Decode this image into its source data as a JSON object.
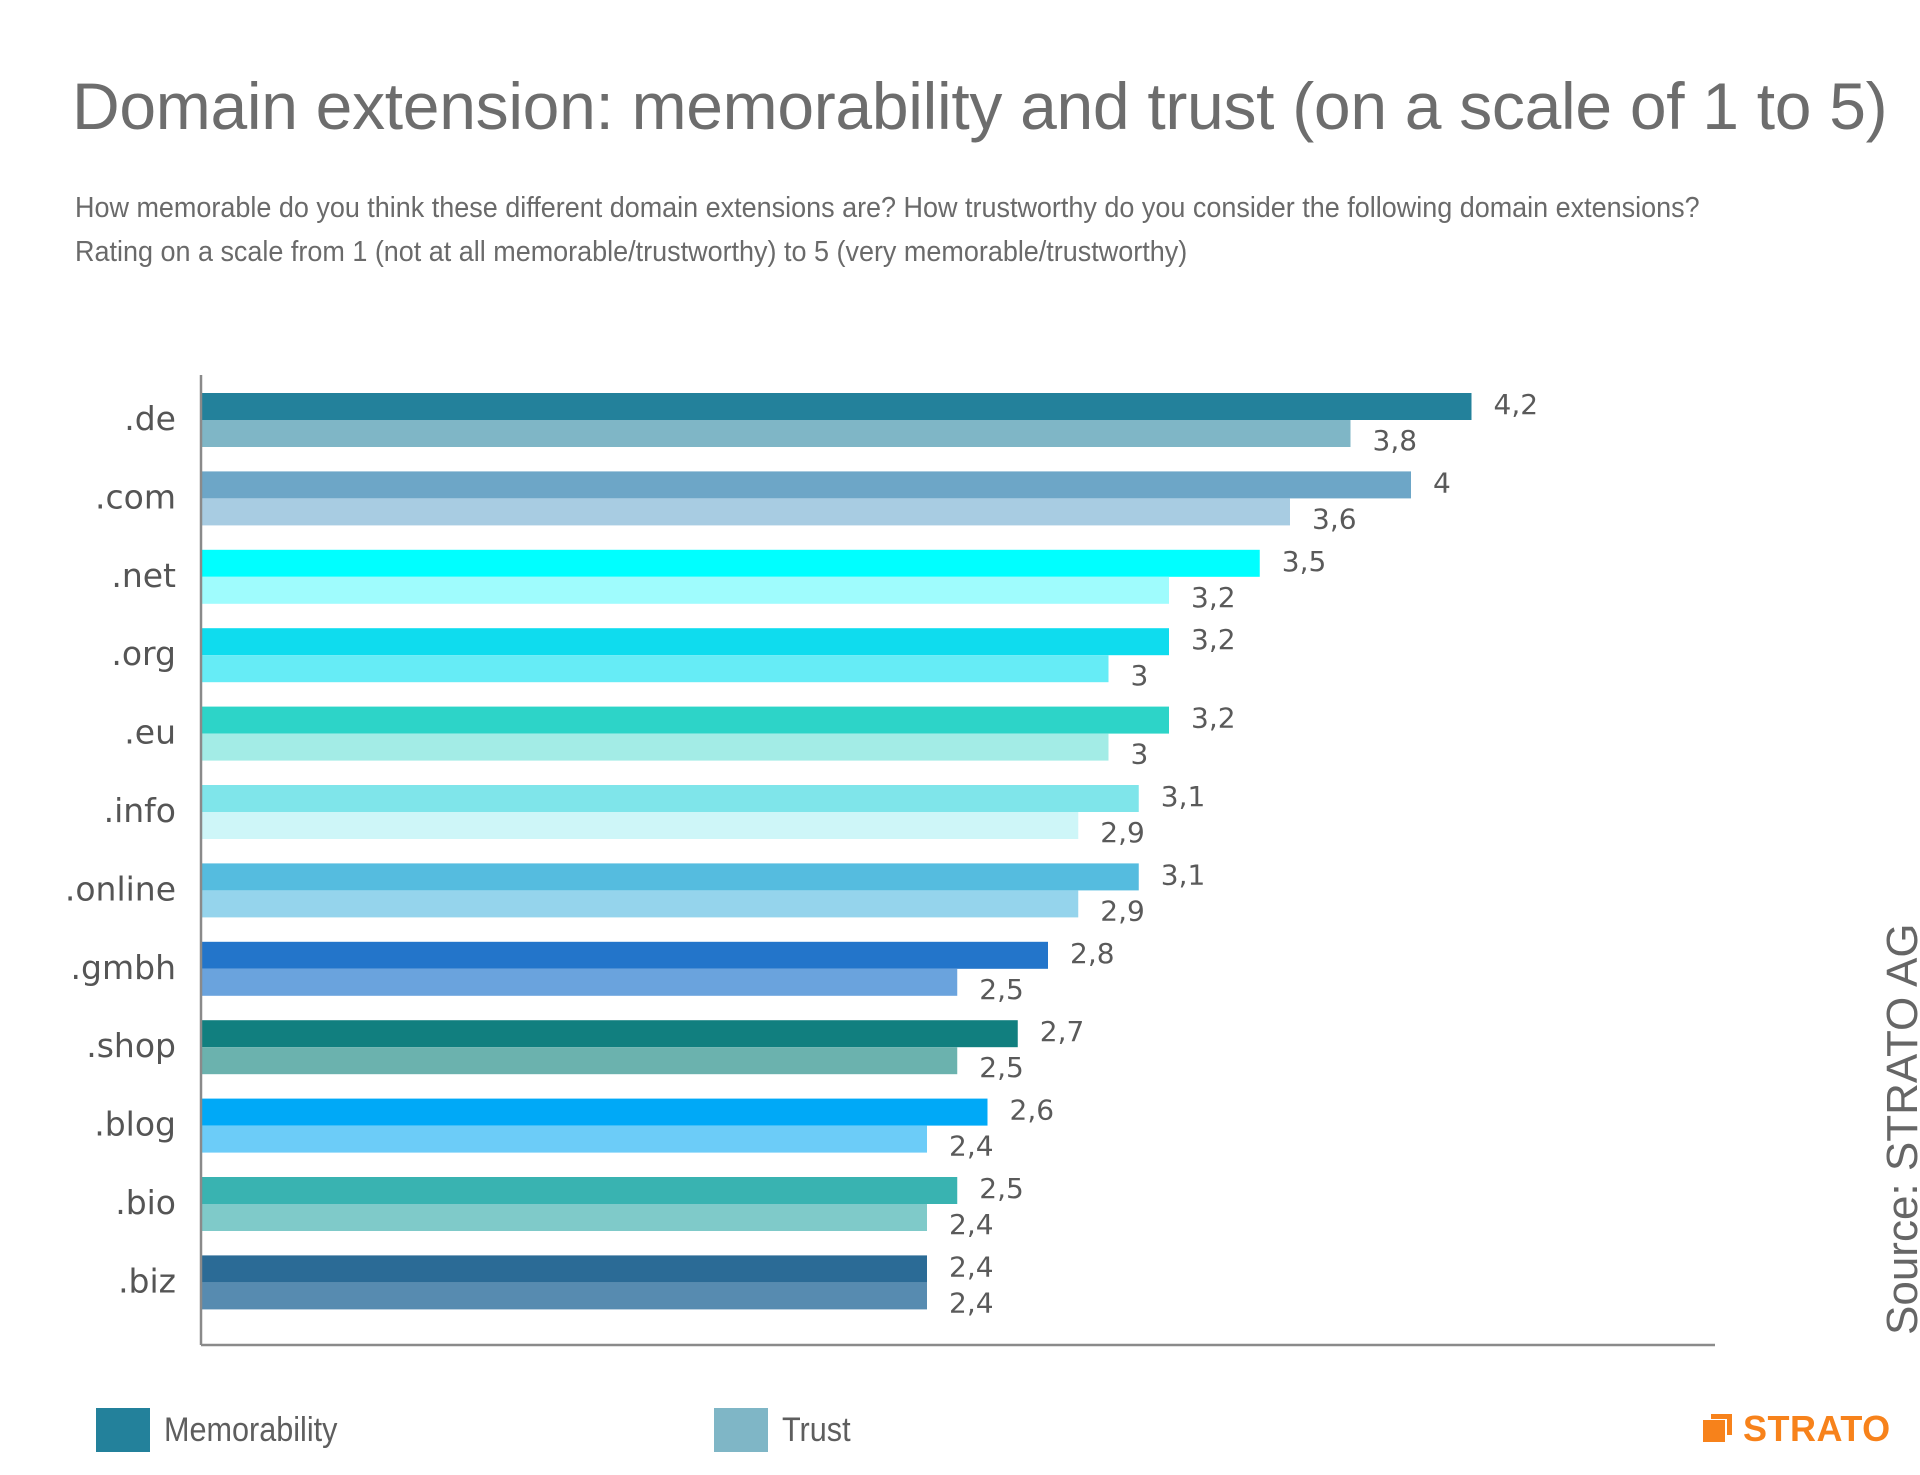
{
  "title": "Domain extension: memorability and trust (on a scale of 1 to 5)",
  "subtitle": [
    "How memorable do you think these different domain extensions are? How trustworthy do you consider the following domain extensions?",
    "Rating on a scale from 1 (not at all memorable/trustworthy) to 5 (very memorable/trustworthy)"
  ],
  "source": "Source: STRATO AG",
  "logo_text": "STRATO",
  "colors": {
    "brand": "#f7821b",
    "memorability": "#23819b",
    "trust": "#7fb6c6"
  },
  "legend": [
    {
      "label": "Memorability",
      "color": "#23819b"
    },
    {
      "label": "Trust",
      "color": "#7fb6c6"
    }
  ],
  "chart_data": {
    "type": "bar",
    "orientation": "horizontal",
    "categories": [
      ".de",
      ".com",
      ".net",
      ".org",
      ".eu",
      ".info",
      ".online",
      ".gmbh",
      ".shop",
      ".blog",
      ".bio",
      ".biz"
    ],
    "series": [
      {
        "name": "Memorability",
        "values": [
          4.2,
          4.0,
          3.5,
          3.2,
          3.2,
          3.1,
          3.1,
          2.8,
          2.7,
          2.6,
          2.5,
          2.4
        ],
        "labels": [
          "4,2",
          "4",
          "3,5",
          "3,2",
          "3,2",
          "3,1",
          "3,1",
          "2,8",
          "2,7",
          "2,6",
          "2,5",
          "2,4"
        ],
        "colors": [
          "#23819b",
          "#6da6c7",
          "#00ffff",
          "#0fdcee",
          "#2dd4c8",
          "#7fe5ea",
          "#55bcdf",
          "#2375ca",
          "#117f7f",
          "#00a9f7",
          "#39b3b1",
          "#2b6b96"
        ]
      },
      {
        "name": "Trust",
        "values": [
          3.8,
          3.6,
          3.2,
          3.0,
          3.0,
          2.9,
          2.9,
          2.5,
          2.5,
          2.4,
          2.4,
          2.4
        ],
        "labels": [
          "3,8",
          "3,6",
          "3,2",
          "3",
          "3",
          "2,9",
          "2,9",
          "2,5",
          "2,5",
          "2,4",
          "2,4",
          "2,4"
        ],
        "colors": [
          "#7fb6c6",
          "#a8cce2",
          "#9ffcfd",
          "#66ecf6",
          "#a3ece6",
          "#cef6f8",
          "#95d4ec",
          "#6aa3dd",
          "#6bb2ae",
          "#6cccf8",
          "#7fcac9",
          "#578bb0"
        ]
      }
    ],
    "xlim": [
      0,
      5
    ],
    "grid": false,
    "legend_position": "bottom"
  }
}
